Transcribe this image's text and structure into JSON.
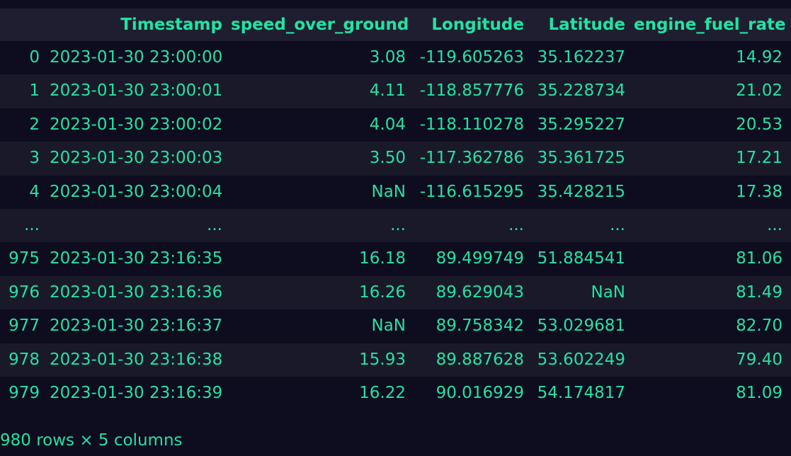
{
  "table": {
    "columns": [
      "",
      "Timestamp",
      "speed_over_ground",
      "Longitude",
      "Latitude",
      "engine_fuel_rate"
    ],
    "rows": [
      [
        "0",
        "2023-01-30 23:00:00",
        "3.08",
        "-119.605263",
        "35.162237",
        "14.92"
      ],
      [
        "1",
        "2023-01-30 23:00:01",
        "4.11",
        "-118.857776",
        "35.228734",
        "21.02"
      ],
      [
        "2",
        "2023-01-30 23:00:02",
        "4.04",
        "-118.110278",
        "35.295227",
        "20.53"
      ],
      [
        "3",
        "2023-01-30 23:00:03",
        "3.50",
        "-117.362786",
        "35.361725",
        "17.21"
      ],
      [
        "4",
        "2023-01-30 23:00:04",
        "NaN",
        "-116.615295",
        "35.428215",
        "17.38"
      ],
      [
        "...",
        "...",
        "...",
        "...",
        "...",
        "..."
      ],
      [
        "975",
        "2023-01-30 23:16:35",
        "16.18",
        "89.499749",
        "51.884541",
        "81.06"
      ],
      [
        "976",
        "2023-01-30 23:16:36",
        "16.26",
        "89.629043",
        "NaN",
        "81.49"
      ],
      [
        "977",
        "2023-01-30 23:16:37",
        "NaN",
        "89.758342",
        "53.029681",
        "82.70"
      ],
      [
        "978",
        "2023-01-30 23:16:38",
        "15.93",
        "89.887628",
        "53.602249",
        "79.40"
      ],
      [
        "979",
        "2023-01-30 23:16:39",
        "16.22",
        "90.016929",
        "54.174817",
        "81.09"
      ]
    ]
  },
  "footer": {
    "summary": "980 rows × 5 columns"
  },
  "colors": {
    "background": "#0e0c1f",
    "header_background": "#1f1e30",
    "stripe_background": "#1a1929",
    "text": "#21e3a2"
  }
}
